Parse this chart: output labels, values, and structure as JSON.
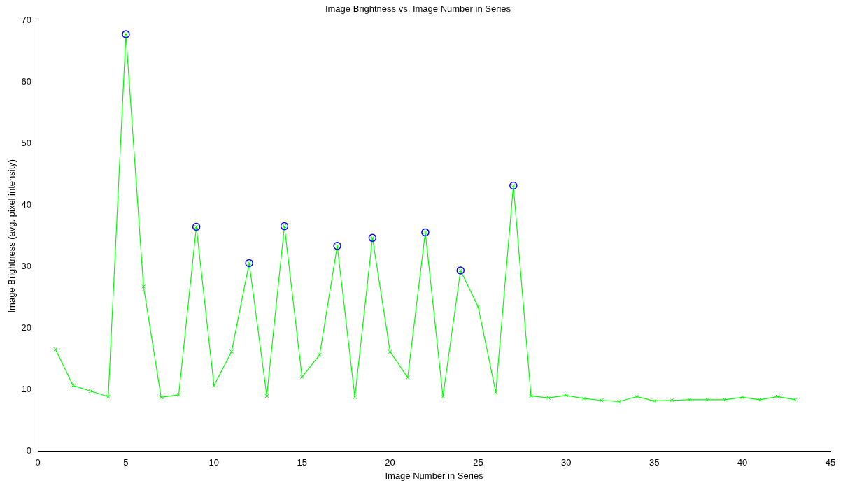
{
  "chart_data": {
    "type": "line",
    "title": "Image Brightness vs. Image Number in Series",
    "xlabel": "Image Number in Series",
    "ylabel": "Image Brightness (avg. pixel intensity)",
    "xlim": [
      0,
      45
    ],
    "xticks": [
      0,
      5,
      10,
      15,
      20,
      25,
      30,
      35,
      40,
      45
    ],
    "ylim": [
      0,
      70
    ],
    "yticks": [
      0,
      10,
      20,
      30,
      40,
      50,
      60,
      70
    ],
    "grid": false,
    "legend": false,
    "series": [
      {
        "type": "line",
        "color": "#00ff00",
        "marker": "cross",
        "x": [
          1,
          2,
          3,
          4,
          5,
          6,
          7,
          8,
          9,
          10,
          11,
          12,
          13,
          14,
          15,
          16,
          17,
          18,
          19,
          20,
          21,
          22,
          23,
          24,
          25,
          26,
          27,
          28,
          29,
          30,
          31,
          32,
          33,
          34,
          35,
          36,
          37,
          38,
          39,
          40,
          41,
          42,
          43
        ],
        "values": [
          16.6,
          10.7,
          9.8,
          8.9,
          67.8,
          26.8,
          8.8,
          9.2,
          36.5,
          10.7,
          16.2,
          30.6,
          9.0,
          36.6,
          12.1,
          15.7,
          33.4,
          8.8,
          34.7,
          16.2,
          12.0,
          35.6,
          8.9,
          29.4,
          23.5,
          9.6,
          43.2,
          9.0,
          8.7,
          9.1,
          8.6,
          8.3,
          8.1,
          8.9,
          8.2,
          8.3,
          8.4,
          8.4,
          8.4,
          8.8,
          8.4,
          8.9,
          8.4
        ]
      },
      {
        "type": "scatter",
        "color": "#0000ff",
        "marker": "circle",
        "x": [
          5,
          9,
          12,
          14,
          17,
          19,
          22,
          24,
          27
        ],
        "values": [
          67.8,
          36.5,
          30.6,
          36.6,
          33.4,
          34.7,
          35.6,
          29.4,
          43.2
        ]
      }
    ]
  }
}
